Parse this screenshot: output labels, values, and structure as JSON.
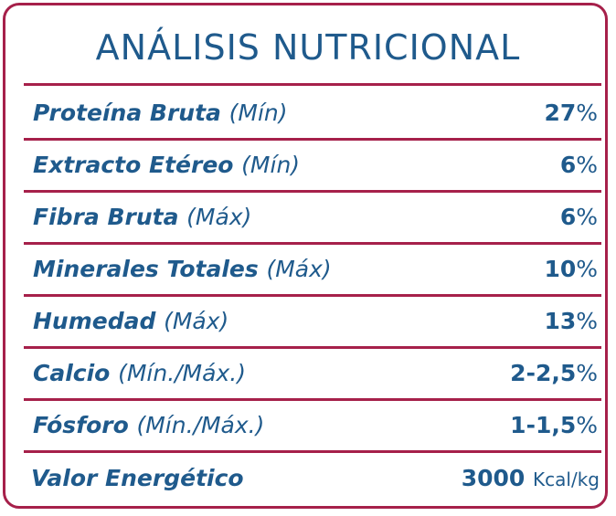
{
  "title": "ANÁLISIS NUTRICIONAL",
  "rows": [
    {
      "name": "Proteína Bruta",
      "qualifier": "(Mín)",
      "value": "27",
      "unit": "%"
    },
    {
      "name": "Extracto Etéreo",
      "qualifier": "(Mín)",
      "value": "6",
      "unit": "%"
    },
    {
      "name": "Fibra Bruta",
      "qualifier": "(Máx)",
      "value": "6",
      "unit": "%"
    },
    {
      "name": "Minerales Totales",
      "qualifier": "(Máx)",
      "value": "10",
      "unit": "%"
    },
    {
      "name": "Humedad",
      "qualifier": "(Máx)",
      "value": "13",
      "unit": "%"
    },
    {
      "name": "Calcio",
      "qualifier": "(Mín./Máx.)",
      "value": "2-2,5",
      "unit": "%"
    },
    {
      "name": "Fósforo",
      "qualifier": "(Mín./Máx.)",
      "value": "1-1,5",
      "unit": "%"
    },
    {
      "name": "Valor Energético",
      "qualifier": "",
      "value": "3000",
      "unit": "Kcal/kg"
    }
  ],
  "colors": {
    "border": "#a6204a",
    "text": "#1f5a8c"
  }
}
